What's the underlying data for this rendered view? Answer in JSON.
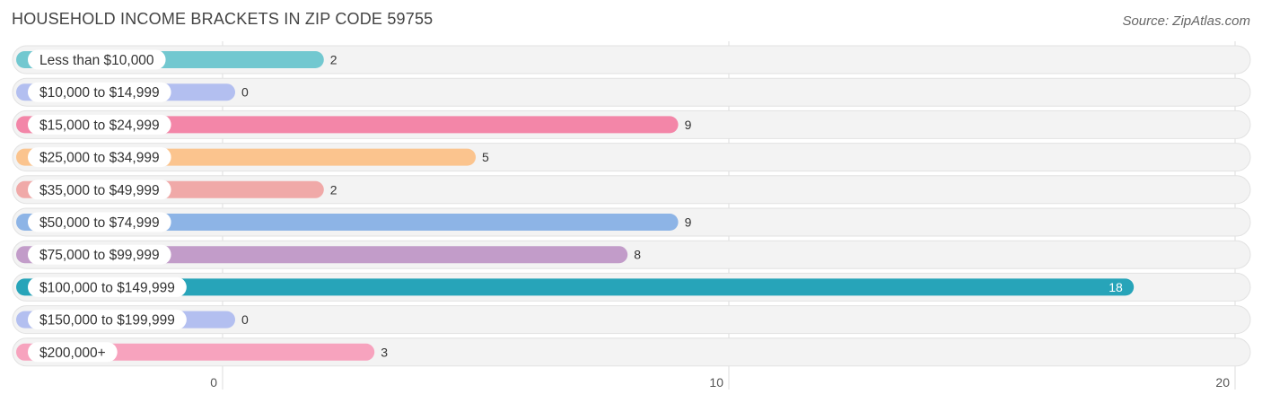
{
  "title": "HOUSEHOLD INCOME BRACKETS IN ZIP CODE 59755",
  "source": "Source: ZipAtlas.com",
  "chart_data": {
    "type": "bar",
    "orientation": "horizontal",
    "title": "HOUSEHOLD INCOME BRACKETS IN ZIP CODE 59755",
    "xlim": [
      0,
      20
    ],
    "xticks": [
      0,
      10,
      20
    ],
    "grid": true,
    "categories": [
      "Less than $10,000",
      "$10,000 to $14,999",
      "$15,000 to $24,999",
      "$25,000 to $34,999",
      "$35,000 to $49,999",
      "$50,000 to $74,999",
      "$75,000 to $99,999",
      "$100,000 to $149,999",
      "$150,000 to $199,999",
      "$200,000+"
    ],
    "values": [
      2,
      0,
      9,
      5,
      2,
      9,
      8,
      18,
      0,
      3
    ],
    "colors": [
      "#72c8d0",
      "#b3bff0",
      "#f386a8",
      "#fbc48e",
      "#f0a9a8",
      "#8db4e6",
      "#c29cc9",
      "#27a4b9",
      "#b3bff0",
      "#f7a3be"
    ]
  }
}
